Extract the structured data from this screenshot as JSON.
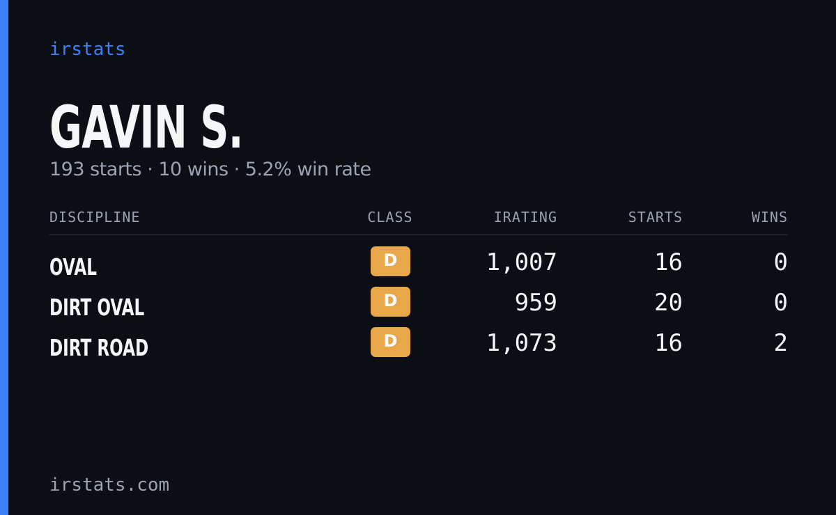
{
  "brand": "irstats",
  "driver": {
    "name": "GAVIN S.",
    "summary": "193 starts · 10 wins · 5.2% win rate"
  },
  "table": {
    "columns": [
      "DISCIPLINE",
      "CLASS",
      "IRATING",
      "STARTS",
      "WINS"
    ],
    "rows": [
      [
        "OVAL",
        "D",
        "1,007",
        "16",
        "0"
      ],
      [
        "DIRT OVAL",
        "D",
        "959",
        "20",
        "0"
      ],
      [
        "DIRT ROAD",
        "D",
        "1,073",
        "16",
        "2"
      ]
    ]
  },
  "footer": "irstats.com"
}
